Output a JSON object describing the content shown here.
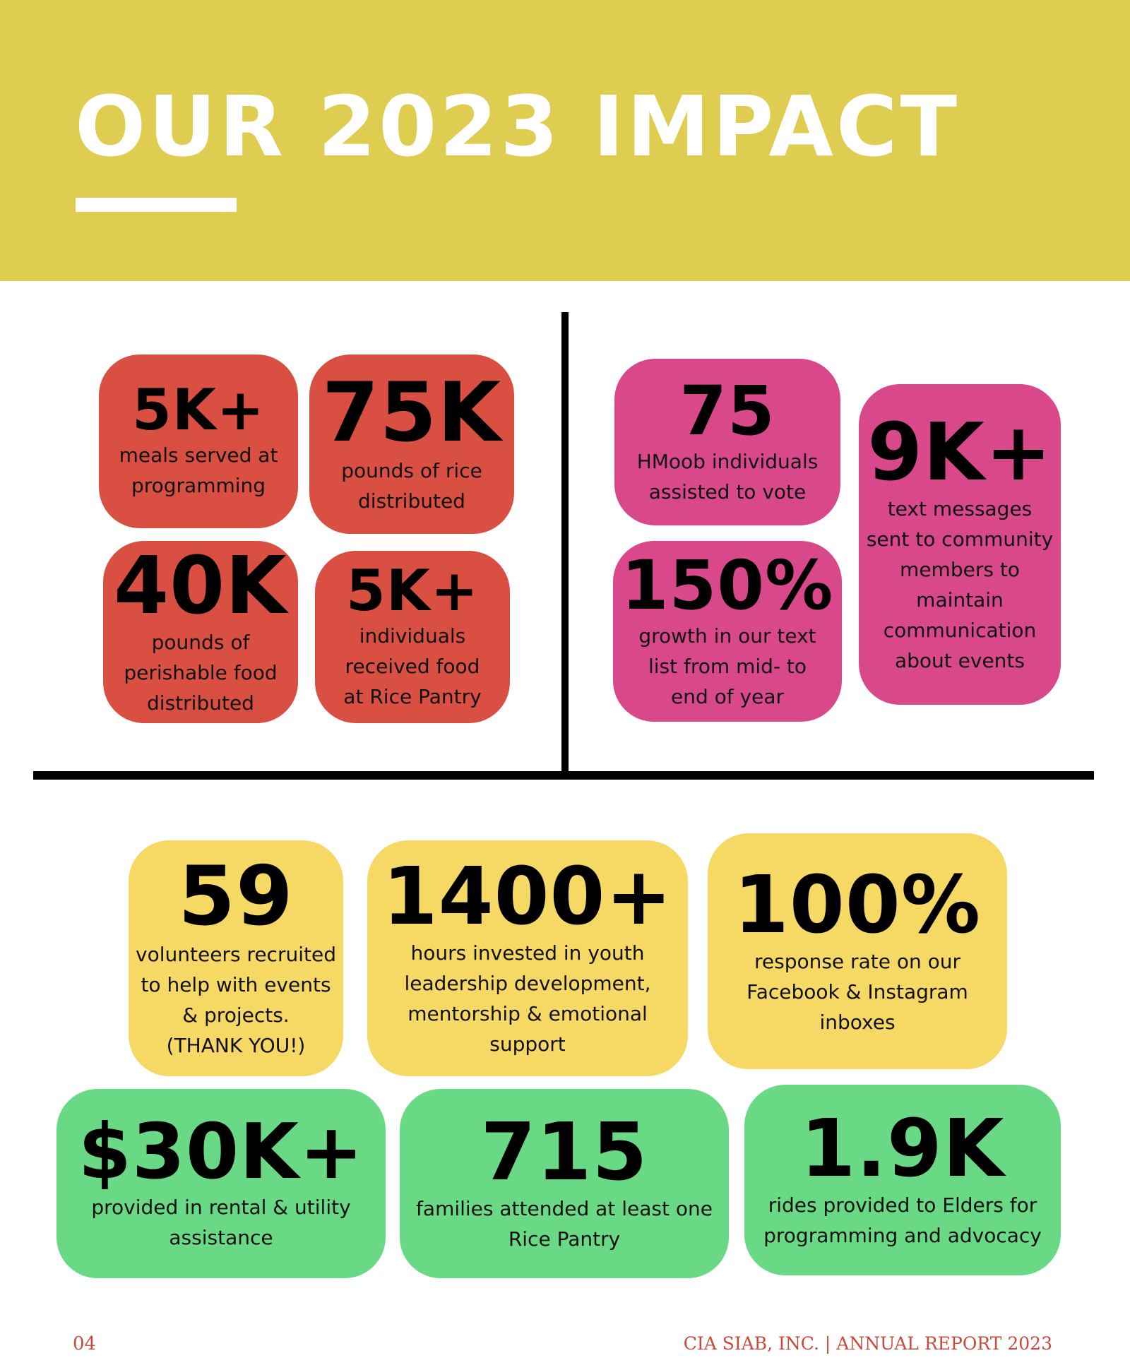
{
  "header": {
    "title": "OUR 2023 IMPACT",
    "background_color": "#dfcd52"
  },
  "colors": {
    "red_card": "#d94f42",
    "pink_card": "#d9488a",
    "yellow_card": "#f6d864",
    "green_card": "#6ad986",
    "footer_text": "#c94a3a"
  },
  "stats": {
    "meals": {
      "number": "5K+",
      "desc": [
        "meals served at",
        "programming"
      ]
    },
    "rice": {
      "number": "75K",
      "desc": [
        "pounds of rice",
        "distributed"
      ]
    },
    "perishable": {
      "number": "40K",
      "desc": [
        "pounds of",
        "perishable food",
        "distributed"
      ]
    },
    "pantry_individuals": {
      "number": "5K+",
      "desc": [
        "individuals",
        "received food",
        "at Rice Pantry"
      ]
    },
    "voters": {
      "number": "75",
      "desc": [
        "HMoob individuals",
        "assisted to vote"
      ]
    },
    "texts": {
      "number": "9K+",
      "desc": [
        "text messages",
        "sent to community",
        "members to",
        "maintain",
        "communication",
        "about events"
      ]
    },
    "growth": {
      "number": "150%",
      "desc": [
        "growth in our text",
        "list from mid- to",
        "end of year"
      ]
    },
    "volunteers": {
      "number": "59",
      "desc": [
        "volunteers recruited",
        "to help with events",
        "& projects.",
        "(THANK YOU!)"
      ]
    },
    "hours": {
      "number": "1400+",
      "desc": [
        "hours invested in youth",
        "leadership development,",
        "mentorship & emotional",
        "support"
      ]
    },
    "response": {
      "number": "100%",
      "desc": [
        "response rate on our",
        "Facebook & Instagram",
        "inboxes"
      ]
    },
    "assistance": {
      "number": "$30K+",
      "desc": [
        "provided in rental & utility",
        "assistance"
      ]
    },
    "families": {
      "number": "715",
      "desc": [
        "families attended at least one",
        "Rice Pantry"
      ]
    },
    "rides": {
      "number": "1.9K",
      "desc": [
        "rides provided to Elders for",
        "programming and advocacy"
      ]
    }
  },
  "footer": {
    "page_number": "04",
    "report_label": "CIA SIAB, INC. | ANNUAL REPORT 2023"
  }
}
